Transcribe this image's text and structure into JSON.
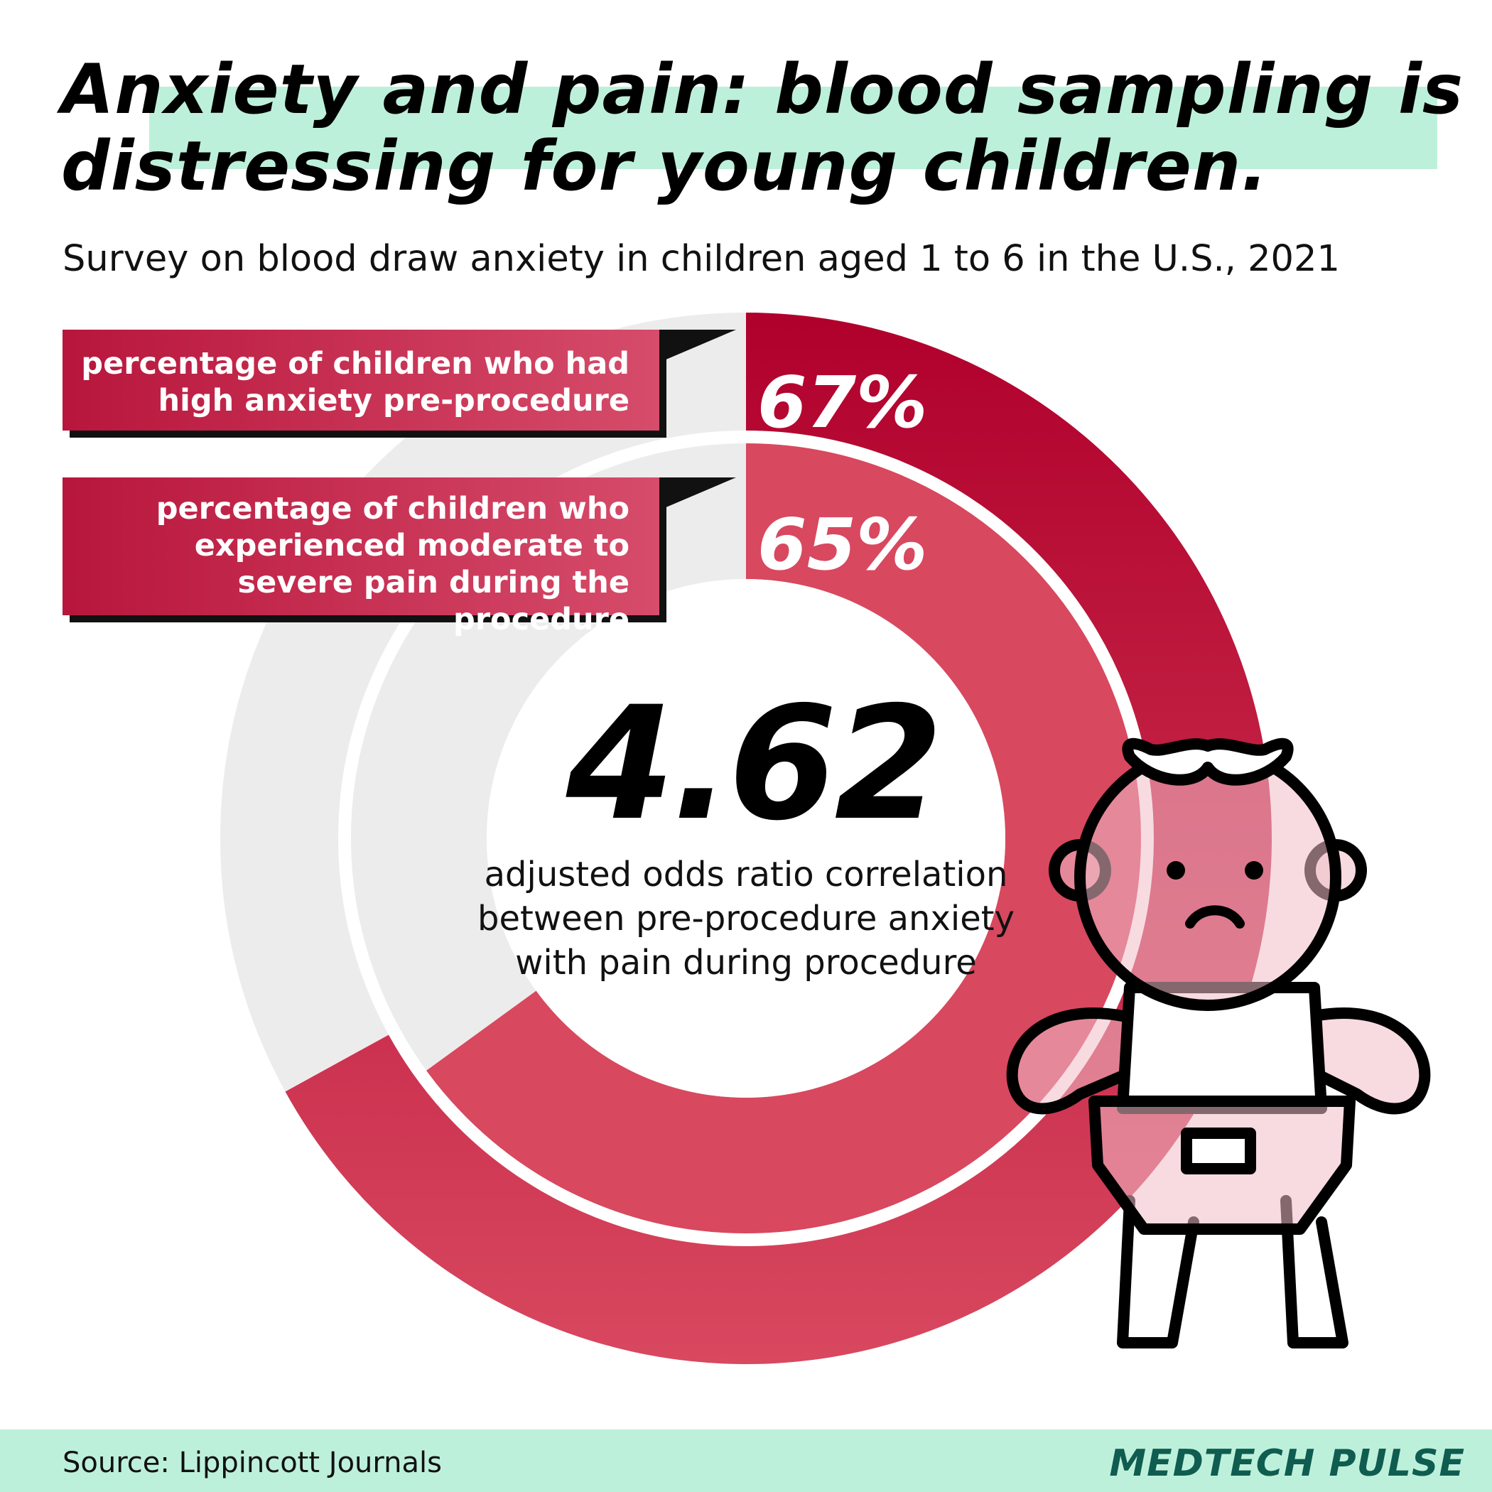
{
  "title": "Anxiety and pain: blood sampling is distressing for young children.",
  "subtitle": "Survey on blood draw anxiety in children aged 1 to 6 in the U.S., 2021",
  "chart_data": {
    "type": "donut",
    "title": "Anxiety and pain: blood sampling is distressing for young children.",
    "subtitle": "Survey on blood draw anxiety in children aged 1 to 6 in the U.S., 2021",
    "series": [
      {
        "name": "percentage of children who had high anxiety pre-procedure",
        "value": 67,
        "label": "67%"
      },
      {
        "name": "percentage of children who experienced moderate to severe pain during the procedure",
        "value": 65,
        "label": "65%"
      }
    ],
    "center": {
      "value": "4.62",
      "caption": "adjusted odds ratio correlation between pre-procedure anxiety with pain during procedure"
    },
    "colors": {
      "ring_outer": "#b3002e",
      "ring_inner": "#d8485f",
      "track": "#ececec",
      "accent": "#bdf0da"
    }
  },
  "footer": {
    "source": "Source: Lippincott Journals",
    "brand": "MEDTECH PULSE"
  },
  "icons": {
    "illustration": "child-in-diaper-icon"
  }
}
